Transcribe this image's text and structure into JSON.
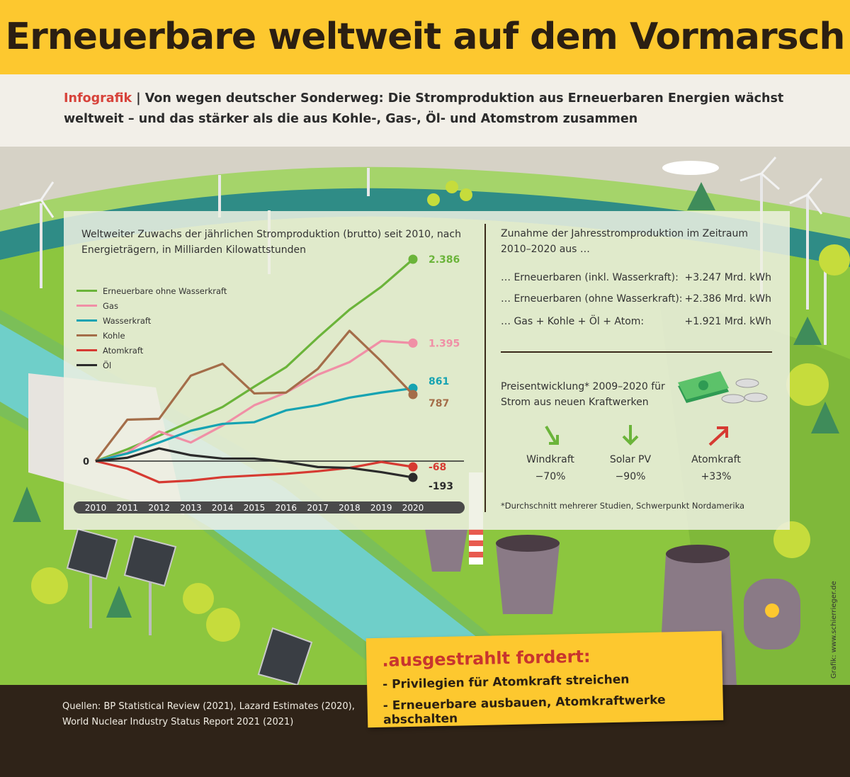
{
  "header": {
    "title": "Erneuerbare weltweit auf dem Vormarsch"
  },
  "intro": {
    "kicker": "Infografik",
    "separator": " | ",
    "text": "Von wegen deutscher Sonderweg: Die Stromproduktion aus Erneuerbaren Energien wächst weltweit – und das stärker als die aus Kohle-, Gas-, Öl- und Atomstrom zusammen"
  },
  "chart_data": {
    "type": "line",
    "title": "Weltweiter Zuwachs der jährlichen Stromproduktion (brutto) seit 2010, nach Energieträgern, in Milliarden Kilowattstunden",
    "zero_label": "0",
    "x": [
      "2010",
      "2011",
      "2012",
      "2013",
      "2014",
      "2015",
      "2016",
      "2017",
      "2018",
      "2019",
      "2020"
    ],
    "ylim": [
      -260,
      2600
    ],
    "series": [
      {
        "name": "Erneuerbare ohne Wasserkraft",
        "color": "#6bb43a",
        "end_label": "2.386",
        "values": [
          0,
          140,
          300,
          470,
          640,
          880,
          1110,
          1460,
          1790,
          2060,
          2386
        ]
      },
      {
        "name": "Gas",
        "color": "#f08fa6",
        "end_label": "1.395",
        "values": [
          0,
          100,
          350,
          220,
          420,
          660,
          810,
          1020,
          1170,
          1420,
          1395
        ]
      },
      {
        "name": "Wasserkraft",
        "color": "#16a3b2",
        "end_label": "861",
        "values": [
          0,
          90,
          220,
          360,
          440,
          460,
          600,
          660,
          750,
          810,
          861
        ]
      },
      {
        "name": "Kohle",
        "color": "#a46d49",
        "end_label": "787",
        "values": [
          0,
          490,
          500,
          1010,
          1150,
          800,
          810,
          1090,
          1540,
          1180,
          787
        ]
      },
      {
        "name": "Atomkraft",
        "color": "#d63a32",
        "end_label": "-68",
        "values": [
          0,
          -90,
          -250,
          -230,
          -190,
          -170,
          -150,
          -120,
          -80,
          -10,
          -68
        ]
      },
      {
        "name": "Öl",
        "color": "#2b2b2b",
        "end_label": "-193",
        "values": [
          0,
          40,
          150,
          70,
          30,
          30,
          -10,
          -70,
          -80,
          -130,
          -193
        ]
      }
    ]
  },
  "right_panel": {
    "title": "Zunahme der Jahresstromproduktion im Zeitraum 2010–2020 aus …",
    "stats": [
      {
        "label": "… Erneuerbaren (inkl. Wasserkraft):",
        "value": "+3.247 Mrd. kWh"
      },
      {
        "label": "… Erneuerbaren (ohne Wasserkraft):",
        "value": "+2.386 Mrd. kWh"
      },
      {
        "label": "… Gas + Kohle + Öl + Atom:",
        "value": "+1.921 Mrd. kWh"
      }
    ],
    "price_title": "Preisentwicklung* 2009–2020 für Strom aus neuen Kraftwerken",
    "prices": [
      {
        "label": "Windkraft",
        "value": "−70%",
        "direction": "down",
        "color": "#6bb43a"
      },
      {
        "label": "Solar PV",
        "value": "−90%",
        "direction": "down",
        "color": "#6bb43a"
      },
      {
        "label": "Atomkraft",
        "value": "+33%",
        "direction": "up",
        "color": "#d63a32"
      }
    ],
    "footnote": "*Durchschnitt mehrerer Studien, Schwerpunkt Nordamerika"
  },
  "demand": {
    "title": ".ausgestrahlt fordert:",
    "items": [
      "- Privilegien für Atomkraft streichen",
      "- Erneuerbare ausbauen, Atomkraftwerke abschalten"
    ]
  },
  "footer": {
    "sources": [
      "Quellen: BP Statistical Review (2021), Lazard Estimates (2020),",
      "World Nuclear Industry Status Report 2021 (2021)"
    ]
  },
  "credit": "Grafik: www.schierrieger.de",
  "colors": {
    "header_bg": "#fdc82f",
    "kicker": "#d7433b",
    "footer_bg": "#2f2318",
    "meadow": "#8cc63f",
    "river": "#6fcfc9"
  }
}
